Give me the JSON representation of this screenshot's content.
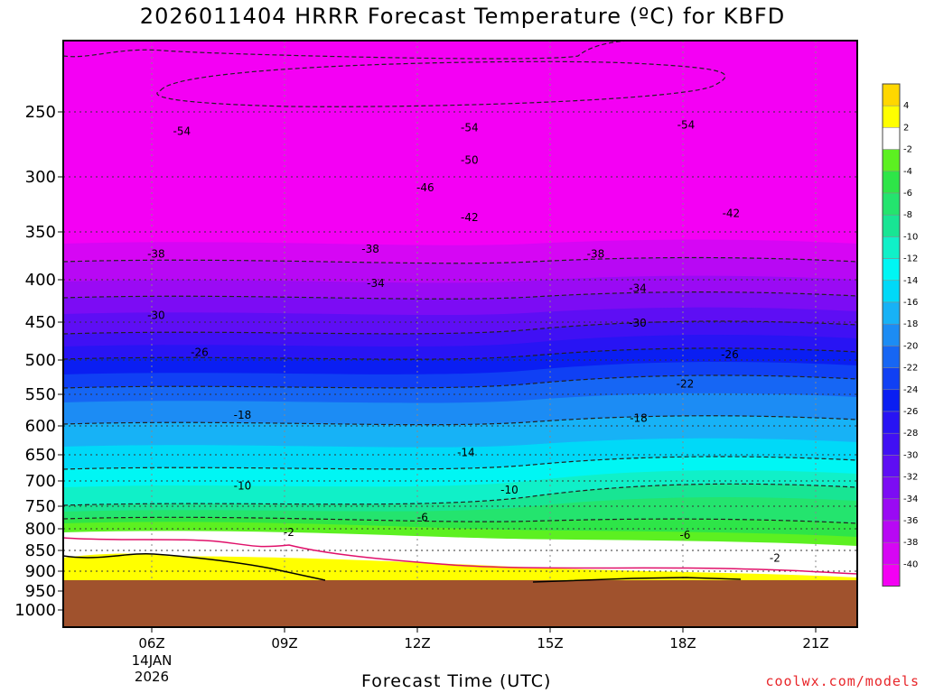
{
  "title": "2026011404 HRRR Forecast Temperature (ºC) for KBFD",
  "credit": "coolwx.com/models",
  "chart_data": {
    "type": "contour",
    "title": "2026011404 HRRR Forecast Temperature (ºC) for KBFD",
    "xlabel": "Forecast Time (UTC)",
    "ylabel": "",
    "y_axis_units": "hPa",
    "y_ticks": [
      "250",
      "300",
      "350",
      "400",
      "450",
      "500",
      "550",
      "600",
      "650",
      "700",
      "750",
      "800",
      "850",
      "900",
      "950",
      "1000"
    ],
    "x_ticks": [
      {
        "label": "06Z",
        "sub": [
          "14JAN",
          "2026"
        ]
      },
      {
        "label": "09Z",
        "sub": []
      },
      {
        "label": "12Z",
        "sub": []
      },
      {
        "label": "15Z",
        "sub": []
      },
      {
        "label": "18Z",
        "sub": []
      },
      {
        "label": "21Z",
        "sub": []
      }
    ],
    "colorbar": {
      "labels": [
        "4",
        "2",
        "-2",
        "-4",
        "-6",
        "-8",
        "-10",
        "-12",
        "-14",
        "-16",
        "-18",
        "-20",
        "-22",
        "-24",
        "-26",
        "-28",
        "-30",
        "-32",
        "-34",
        "-36",
        "-38",
        "-40"
      ],
      "colors": [
        "#ffd700",
        "#ffff00",
        "#ffffff",
        "#5cf021",
        "#2ee548",
        "#24e46e",
        "#18e594",
        "#10f0c8",
        "#00f6f4",
        "#00d9f8",
        "#17b2f6",
        "#1c8cf4",
        "#1666f4",
        "#1040f4",
        "#0a1ef2",
        "#2814f4",
        "#4010f4",
        "#5e0ef4",
        "#7c0cf4",
        "#9a0af4",
        "#b808f4",
        "#d606f4",
        "#f400f4"
      ]
    },
    "contour_labels": [
      {
        "value": "-54",
        "x_hour": 6.68,
        "p": 265
      },
      {
        "value": "-54",
        "x_hour": 13.18,
        "p": 262
      },
      {
        "value": "-54",
        "x_hour": 18.07,
        "p": 260
      },
      {
        "value": "-50",
        "x_hour": 13.18,
        "p": 287
      },
      {
        "value": "-46",
        "x_hour": 12.18,
        "p": 310
      },
      {
        "value": "-42",
        "x_hour": 13.18,
        "p": 337
      },
      {
        "value": "-42",
        "x_hour": 19.09,
        "p": 333
      },
      {
        "value": "-38",
        "x_hour": 6.1,
        "p": 373
      },
      {
        "value": "-38",
        "x_hour": 10.94,
        "p": 368
      },
      {
        "value": "-38",
        "x_hour": 16.03,
        "p": 373
      },
      {
        "value": "-34",
        "x_hour": 11.06,
        "p": 404
      },
      {
        "value": "-34",
        "x_hour": 16.98,
        "p": 410
      },
      {
        "value": "-30",
        "x_hour": 6.1,
        "p": 442
      },
      {
        "value": "-30",
        "x_hour": 16.98,
        "p": 451
      },
      {
        "value": "-26",
        "x_hour": 7.08,
        "p": 490
      },
      {
        "value": "-26",
        "x_hour": 19.06,
        "p": 493
      },
      {
        "value": "-22",
        "x_hour": 18.05,
        "p": 535
      },
      {
        "value": "-18",
        "x_hour": 8.05,
        "p": 583
      },
      {
        "value": "-18",
        "x_hour": 17.0,
        "p": 588
      },
      {
        "value": "-14",
        "x_hour": 13.1,
        "p": 646
      },
      {
        "value": "-10",
        "x_hour": 8.05,
        "p": 710
      },
      {
        "value": "-10",
        "x_hour": 14.08,
        "p": 718
      },
      {
        "value": "-6",
        "x_hour": 12.12,
        "p": 775
      },
      {
        "value": "-6",
        "x_hour": 18.05,
        "p": 815
      },
      {
        "value": "-2",
        "x_hour": 9.1,
        "p": 808
      },
      {
        "value": "-2",
        "x_hour": 20.08,
        "p": 868
      }
    ],
    "color_bands_top_to_bottom": [
      "-40",
      "-38",
      "-36",
      "-34",
      "-32",
      "-30",
      "-28",
      "-26",
      "-24",
      "-22",
      "-20",
      "-18",
      "-16",
      "-14",
      "-12",
      "-10",
      "-8",
      "-6",
      "-4",
      "-2",
      "2",
      "4"
    ],
    "x_range_hours": [
      3.2,
      21.9
    ],
    "terrain_below_hpa": 945,
    "grid": true
  }
}
